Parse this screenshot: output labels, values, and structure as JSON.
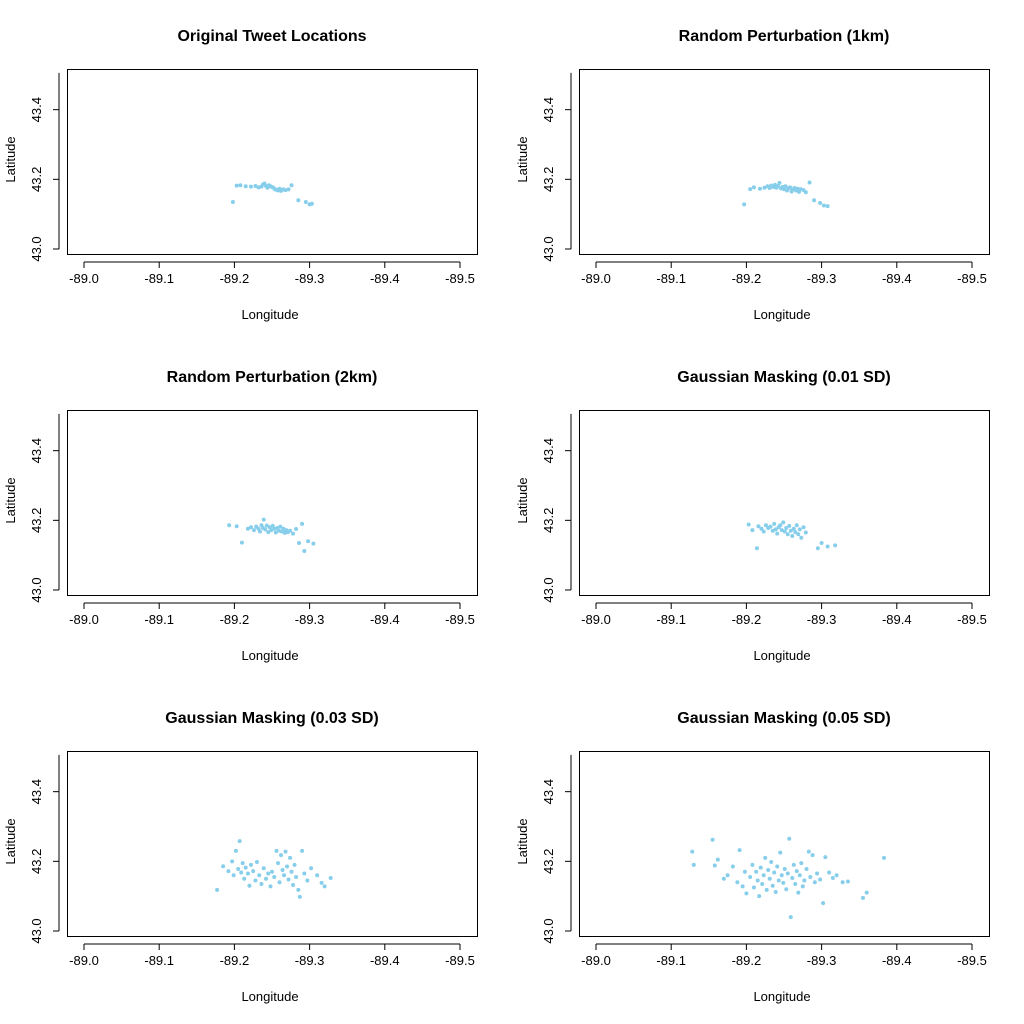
{
  "figure": {
    "point_color": "#87CEEB"
  },
  "chart_data": [
    {
      "type": "scatter",
      "title": "Original Tweet Locations",
      "xlabel": "Longitude",
      "ylabel": "Latitude",
      "xlim": [
        -89.0,
        -89.5
      ],
      "ylim": [
        43.0,
        43.5
      ],
      "x_reversed": true,
      "xticks": [
        "-89.0",
        "-89.1",
        "-89.2",
        "-89.3",
        "-89.4",
        "-89.5"
      ],
      "yticks": [
        "43.0",
        "43.2",
        "43.4"
      ],
      "points": [
        [
          -89.198,
          43.135
        ],
        [
          -89.203,
          43.182
        ],
        [
          -89.208,
          43.183
        ],
        [
          -89.215,
          43.18
        ],
        [
          -89.222,
          43.179
        ],
        [
          -89.228,
          43.181
        ],
        [
          -89.232,
          43.177
        ],
        [
          -89.236,
          43.179
        ],
        [
          -89.238,
          43.185
        ],
        [
          -89.24,
          43.188
        ],
        [
          -89.242,
          43.181
        ],
        [
          -89.244,
          43.176
        ],
        [
          -89.246,
          43.183
        ],
        [
          -89.248,
          43.18
        ],
        [
          -89.25,
          43.178
        ],
        [
          -89.252,
          43.176
        ],
        [
          -89.254,
          43.171
        ],
        [
          -89.256,
          43.17
        ],
        [
          -89.258,
          43.168
        ],
        [
          -89.26,
          43.173
        ],
        [
          -89.262,
          43.167
        ],
        [
          -89.265,
          43.171
        ],
        [
          -89.268,
          43.169
        ],
        [
          -89.272,
          43.171
        ],
        [
          -89.276,
          43.183
        ],
        [
          -89.285,
          43.14
        ],
        [
          -89.295,
          43.135
        ],
        [
          -89.3,
          43.128
        ],
        [
          -89.303,
          43.13
        ]
      ]
    },
    {
      "type": "scatter",
      "title": "Random Perturbation (1km)",
      "xlabel": "Longitude",
      "ylabel": "Latitude",
      "xlim": [
        -89.0,
        -89.5
      ],
      "ylim": [
        43.0,
        43.5
      ],
      "x_reversed": true,
      "xticks": [
        "-89.0",
        "-89.1",
        "-89.2",
        "-89.3",
        "-89.4",
        "-89.5"
      ],
      "yticks": [
        "43.0",
        "43.2",
        "43.4"
      ],
      "points": [
        [
          -89.197,
          43.128
        ],
        [
          -89.205,
          43.172
        ],
        [
          -89.21,
          43.177
        ],
        [
          -89.218,
          43.173
        ],
        [
          -89.224,
          43.176
        ],
        [
          -89.228,
          43.18
        ],
        [
          -89.231,
          43.175
        ],
        [
          -89.233,
          43.182
        ],
        [
          -89.236,
          43.178
        ],
        [
          -89.238,
          43.184
        ],
        [
          -89.24,
          43.176
        ],
        [
          -89.242,
          43.181
        ],
        [
          -89.244,
          43.19
        ],
        [
          -89.246,
          43.174
        ],
        [
          -89.248,
          43.178
        ],
        [
          -89.25,
          43.172
        ],
        [
          -89.252,
          43.18
        ],
        [
          -89.254,
          43.168
        ],
        [
          -89.256,
          43.174
        ],
        [
          -89.258,
          43.177
        ],
        [
          -89.26,
          43.165
        ],
        [
          -89.262,
          43.171
        ],
        [
          -89.264,
          43.175
        ],
        [
          -89.266,
          43.168
        ],
        [
          -89.268,
          43.173
        ],
        [
          -89.27,
          43.164
        ],
        [
          -89.272,
          43.172
        ],
        [
          -89.276,
          43.169
        ],
        [
          -89.279,
          43.163
        ],
        [
          -89.284,
          43.191
        ],
        [
          -89.29,
          43.14
        ],
        [
          -89.298,
          43.132
        ],
        [
          -89.303,
          43.125
        ],
        [
          -89.308,
          43.123
        ]
      ]
    },
    {
      "type": "scatter",
      "title": "Random Perturbation (2km)",
      "xlabel": "Longitude",
      "ylabel": "Latitude",
      "xlim": [
        -89.0,
        -89.5
      ],
      "ylim": [
        43.0,
        43.5
      ],
      "x_reversed": true,
      "xticks": [
        "-89.0",
        "-89.1",
        "-89.2",
        "-89.3",
        "-89.4",
        "-89.5"
      ],
      "yticks": [
        "43.0",
        "43.2",
        "43.4"
      ],
      "points": [
        [
          -89.193,
          43.186
        ],
        [
          -89.203,
          43.183
        ],
        [
          -89.21,
          43.136
        ],
        [
          -89.218,
          43.176
        ],
        [
          -89.222,
          43.18
        ],
        [
          -89.226,
          43.172
        ],
        [
          -89.229,
          43.182
        ],
        [
          -89.232,
          43.176
        ],
        [
          -89.234,
          43.168
        ],
        [
          -89.236,
          43.186
        ],
        [
          -89.238,
          43.178
        ],
        [
          -89.239,
          43.202
        ],
        [
          -89.241,
          43.174
        ],
        [
          -89.243,
          43.185
        ],
        [
          -89.245,
          43.166
        ],
        [
          -89.247,
          43.18
        ],
        [
          -89.249,
          43.172
        ],
        [
          -89.251,
          43.184
        ],
        [
          -89.253,
          43.176
        ],
        [
          -89.255,
          43.165
        ],
        [
          -89.257,
          43.178
        ],
        [
          -89.259,
          43.17
        ],
        [
          -89.261,
          43.182
        ],
        [
          -89.263,
          43.168
        ],
        [
          -89.265,
          43.176
        ],
        [
          -89.267,
          43.164
        ],
        [
          -89.269,
          43.172
        ],
        [
          -89.271,
          43.166
        ],
        [
          -89.274,
          43.17
        ],
        [
          -89.278,
          43.162
        ],
        [
          -89.282,
          43.175
        ],
        [
          -89.286,
          43.135
        ],
        [
          -89.29,
          43.19
        ],
        [
          -89.293,
          43.112
        ],
        [
          -89.298,
          43.14
        ],
        [
          -89.305,
          43.133
        ]
      ]
    },
    {
      "type": "scatter",
      "title": "Gaussian Masking (0.01 SD)",
      "xlabel": "Longitude",
      "ylabel": "Latitude",
      "xlim": [
        -89.0,
        -89.5
      ],
      "ylim": [
        43.0,
        43.5
      ],
      "x_reversed": true,
      "xticks": [
        "-89.0",
        "-89.1",
        "-89.2",
        "-89.3",
        "-89.4",
        "-89.5"
      ],
      "yticks": [
        "43.0",
        "43.2",
        "43.4"
      ],
      "points": [
        [
          -89.203,
          43.188
        ],
        [
          -89.208,
          43.172
        ],
        [
          -89.214,
          43.12
        ],
        [
          -89.216,
          43.183
        ],
        [
          -89.22,
          43.176
        ],
        [
          -89.223,
          43.168
        ],
        [
          -89.226,
          43.186
        ],
        [
          -89.229,
          43.178
        ],
        [
          -89.232,
          43.182
        ],
        [
          -89.235,
          43.17
        ],
        [
          -89.237,
          43.19
        ],
        [
          -89.239,
          43.174
        ],
        [
          -89.241,
          43.162
        ],
        [
          -89.243,
          43.18
        ],
        [
          -89.245,
          43.186
        ],
        [
          -89.247,
          43.172
        ],
        [
          -89.249,
          43.194
        ],
        [
          -89.251,
          43.168
        ],
        [
          -89.253,
          43.178
        ],
        [
          -89.255,
          43.16
        ],
        [
          -89.257,
          43.184
        ],
        [
          -89.259,
          43.17
        ],
        [
          -89.261,
          43.155
        ],
        [
          -89.263,
          43.176
        ],
        [
          -89.265,
          43.166
        ],
        [
          -89.267,
          43.186
        ],
        [
          -89.269,
          43.16
        ],
        [
          -89.271,
          43.174
        ],
        [
          -89.273,
          43.15
        ],
        [
          -89.276,
          43.18
        ],
        [
          -89.279,
          43.165
        ],
        [
          -89.295,
          43.12
        ],
        [
          -89.3,
          43.135
        ],
        [
          -89.308,
          43.125
        ],
        [
          -89.318,
          43.128
        ]
      ]
    },
    {
      "type": "scatter",
      "title": "Gaussian Masking (0.03 SD)",
      "xlabel": "Longitude",
      "ylabel": "Latitude",
      "xlim": [
        -89.0,
        -89.5
      ],
      "ylim": [
        43.0,
        43.5
      ],
      "x_reversed": true,
      "xticks": [
        "-89.0",
        "-89.1",
        "-89.2",
        "-89.3",
        "-89.4",
        "-89.5"
      ],
      "yticks": [
        "43.0",
        "43.2",
        "43.4"
      ],
      "points": [
        [
          -89.177,
          43.118
        ],
        [
          -89.185,
          43.186
        ],
        [
          -89.192,
          43.172
        ],
        [
          -89.197,
          43.2
        ],
        [
          -89.199,
          43.16
        ],
        [
          -89.202,
          43.23
        ],
        [
          -89.205,
          43.178
        ],
        [
          -89.207,
          43.258
        ],
        [
          -89.209,
          43.168
        ],
        [
          -89.211,
          43.195
        ],
        [
          -89.213,
          43.15
        ],
        [
          -89.215,
          43.182
        ],
        [
          -89.218,
          43.165
        ],
        [
          -89.22,
          43.13
        ],
        [
          -89.222,
          43.19
        ],
        [
          -89.225,
          43.172
        ],
        [
          -89.228,
          43.145
        ],
        [
          -89.23,
          43.198
        ],
        [
          -89.233,
          43.16
        ],
        [
          -89.236,
          43.135
        ],
        [
          -89.239,
          43.18
        ],
        [
          -89.242,
          43.15
        ],
        [
          -89.245,
          43.165
        ],
        [
          -89.248,
          43.128
        ],
        [
          -89.25,
          43.17
        ],
        [
          -89.253,
          43.155
        ],
        [
          -89.256,
          43.23
        ],
        [
          -89.258,
          43.195
        ],
        [
          -89.26,
          43.14
        ],
        [
          -89.262,
          43.218
        ],
        [
          -89.264,
          43.175
        ],
        [
          -89.266,
          43.16
        ],
        [
          -89.268,
          43.228
        ],
        [
          -89.27,
          43.185
        ],
        [
          -89.272,
          43.148
        ],
        [
          -89.274,
          43.21
        ],
        [
          -89.276,
          43.17
        ],
        [
          -89.278,
          43.132
        ],
        [
          -89.28,
          43.19
        ],
        [
          -89.282,
          43.155
        ],
        [
          -89.285,
          43.118
        ],
        [
          -89.287,
          43.098
        ],
        [
          -89.29,
          43.23
        ],
        [
          -89.293,
          43.165
        ],
        [
          -89.297,
          43.145
        ],
        [
          -89.302,
          43.18
        ],
        [
          -89.31,
          43.16
        ],
        [
          -89.316,
          43.138
        ],
        [
          -89.32,
          43.128
        ],
        [
          -89.328,
          43.152
        ]
      ]
    },
    {
      "type": "scatter",
      "title": "Gaussian Masking (0.05 SD)",
      "xlabel": "Longitude",
      "ylabel": "Latitude",
      "xlim": [
        -89.0,
        -89.5
      ],
      "ylim": [
        43.0,
        43.5
      ],
      "x_reversed": true,
      "xticks": [
        "-89.0",
        "-89.1",
        "-89.2",
        "-89.3",
        "-89.4",
        "-89.5"
      ],
      "yticks": [
        "43.0",
        "43.2",
        "43.4"
      ],
      "points": [
        [
          -89.128,
          43.228
        ],
        [
          -89.13,
          43.19
        ],
        [
          -89.155,
          43.262
        ],
        [
          -89.158,
          43.188
        ],
        [
          -89.162,
          43.205
        ],
        [
          -89.17,
          43.15
        ],
        [
          -89.175,
          43.16
        ],
        [
          -89.182,
          43.185
        ],
        [
          -89.188,
          43.14
        ],
        [
          -89.191,
          43.232
        ],
        [
          -89.195,
          43.128
        ],
        [
          -89.198,
          43.17
        ],
        [
          -89.2,
          43.108
        ],
        [
          -89.205,
          43.155
        ],
        [
          -89.208,
          43.19
        ],
        [
          -89.21,
          43.125
        ],
        [
          -89.213,
          43.17
        ],
        [
          -89.215,
          43.145
        ],
        [
          -89.217,
          43.1
        ],
        [
          -89.219,
          43.182
        ],
        [
          -89.221,
          43.135
        ],
        [
          -89.223,
          43.16
        ],
        [
          -89.225,
          43.21
        ],
        [
          -89.227,
          43.118
        ],
        [
          -89.229,
          43.175
        ],
        [
          -89.231,
          43.15
        ],
        [
          -89.233,
          43.198
        ],
        [
          -89.235,
          43.13
        ],
        [
          -89.237,
          43.168
        ],
        [
          -89.239,
          43.112
        ],
        [
          -89.241,
          43.185
        ],
        [
          -89.243,
          43.145
        ],
        [
          -89.245,
          43.225
        ],
        [
          -89.247,
          43.16
        ],
        [
          -89.249,
          43.138
        ],
        [
          -89.251,
          43.178
        ],
        [
          -89.253,
          43.12
        ],
        [
          -89.255,
          43.165
        ],
        [
          -89.257,
          43.265
        ],
        [
          -89.259,
          43.04
        ],
        [
          -89.261,
          43.152
        ],
        [
          -89.263,
          43.19
        ],
        [
          -89.265,
          43.135
        ],
        [
          -89.267,
          43.172
        ],
        [
          -89.269,
          43.11
        ],
        [
          -89.271,
          43.16
        ],
        [
          -89.273,
          43.195
        ],
        [
          -89.275,
          43.128
        ],
        [
          -89.277,
          43.145
        ],
        [
          -89.28,
          43.178
        ],
        [
          -89.283,
          43.228
        ],
        [
          -89.285,
          43.155
        ],
        [
          -89.288,
          43.218
        ],
        [
          -89.291,
          43.14
        ],
        [
          -89.294,
          43.165
        ],
        [
          -89.298,
          43.148
        ],
        [
          -89.302,
          43.08
        ],
        [
          -89.305,
          43.212
        ],
        [
          -89.31,
          43.168
        ],
        [
          -89.315,
          43.152
        ],
        [
          -89.32,
          43.16
        ],
        [
          -89.328,
          43.14
        ],
        [
          -89.335,
          43.142
        ],
        [
          -89.355,
          43.095
        ],
        [
          -89.36,
          43.11
        ],
        [
          -89.383,
          43.21
        ]
      ]
    }
  ]
}
